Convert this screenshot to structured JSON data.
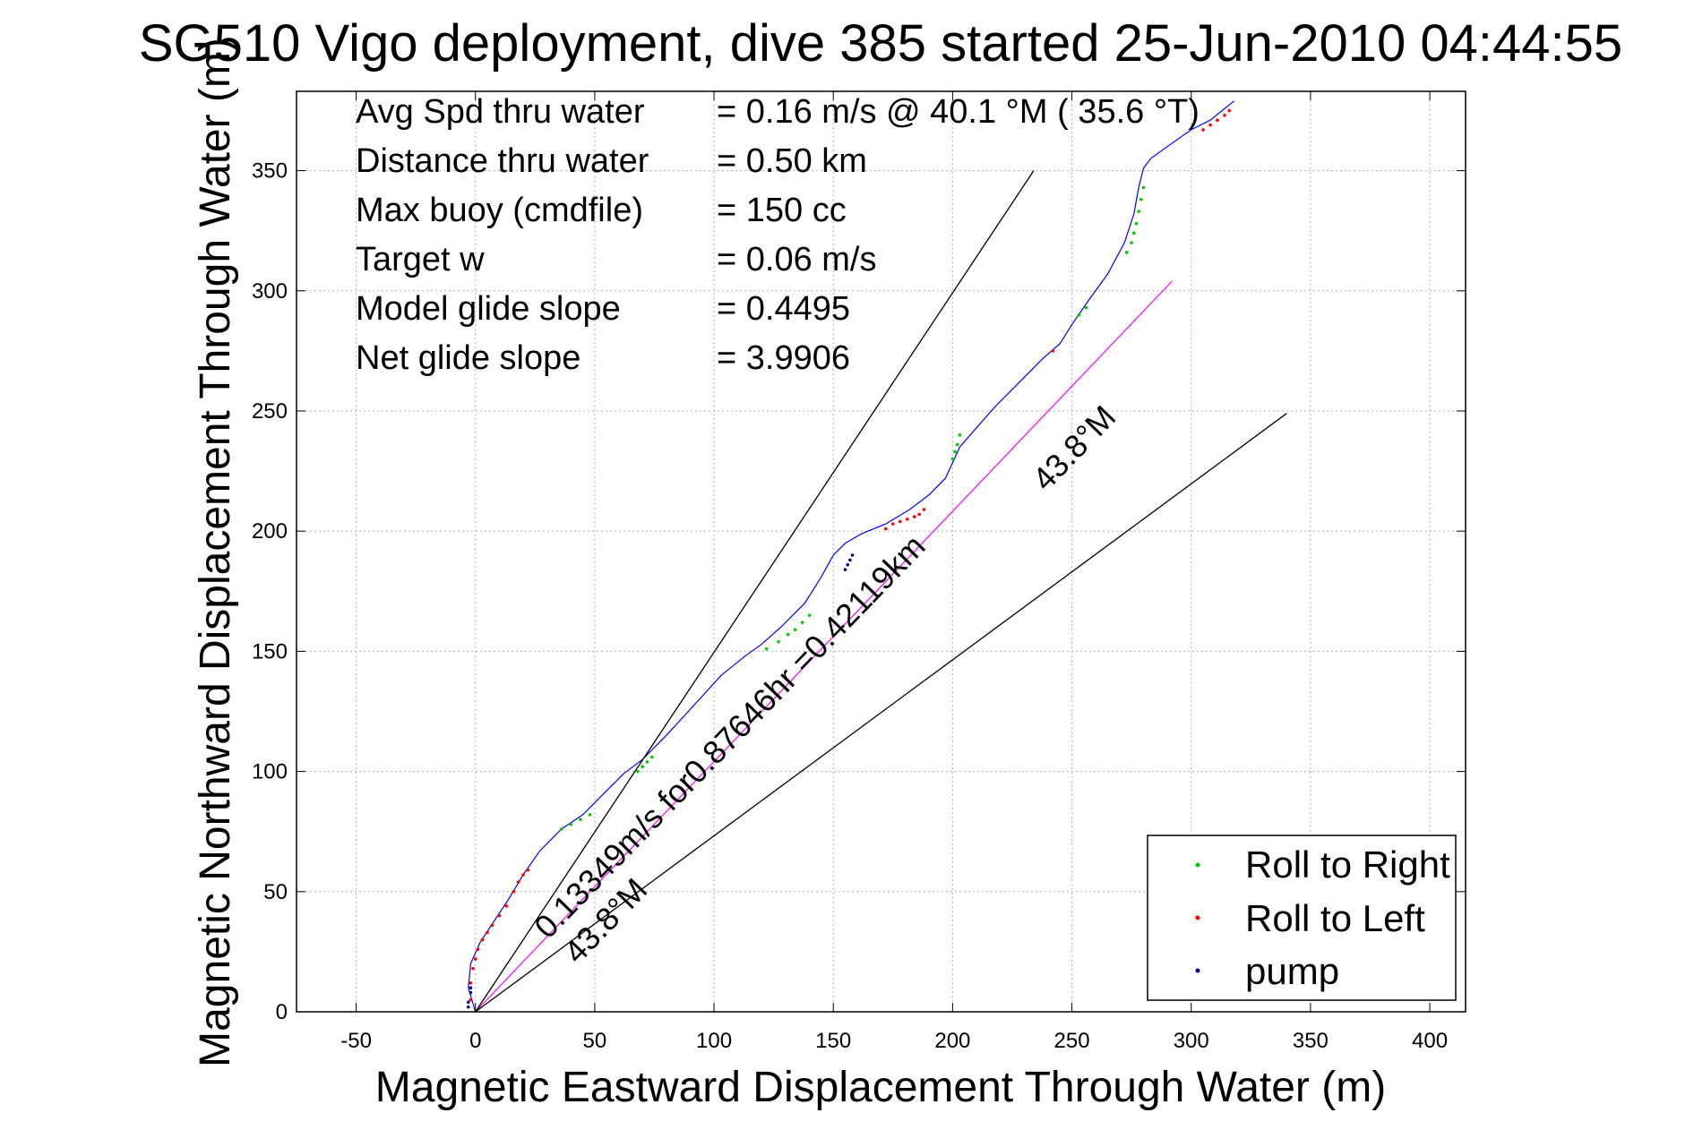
{
  "chart_data": {
    "type": "line",
    "title": "SG510 Vigo deployment, dive 385 started 25-Jun-2010 04:44:55",
    "xlabel": "Magnetic Eastward Displacement Through Water (m)",
    "ylabel": "Magnetic Northward Displacement Through Water (m)",
    "xlim": [
      -75,
      415
    ],
    "ylim": [
      0,
      383
    ],
    "xticks": [
      -50,
      0,
      50,
      100,
      150,
      200,
      250,
      300,
      350,
      400
    ],
    "yticks": [
      0,
      50,
      100,
      150,
      200,
      250,
      300,
      350
    ],
    "grid": true,
    "colors": {
      "track": "#0000ff",
      "net": "#ff00ff",
      "envelope": "#000000",
      "roll_right": "#00cc00",
      "roll_left": "#ff0000",
      "pump": "#000080"
    },
    "stats": [
      {
        "label": "Avg Spd thru water",
        "value": "=  0.16 m/s @  40.1 °M ( 35.6 °T)"
      },
      {
        "label": "Distance thru water",
        "value": "=  0.50 km"
      },
      {
        "label": "Max buoy (cmdfile)",
        "value": "= 150 cc"
      },
      {
        "label": "Target w",
        "value": "= 0.06 m/s"
      },
      {
        "label": "Model glide slope",
        "value": "= 0.4495"
      },
      {
        "label": "Net glide slope",
        "value": "= 3.9906"
      }
    ],
    "annotations": {
      "net_line": "0.13349m/s for0.87646hr =0.42119km",
      "heading_upper": "43.8°M",
      "heading_lower": "43.8°M"
    },
    "legend": {
      "placement": "bottom-right",
      "entries": [
        {
          "label": "Roll to Right",
          "color": "#00cc00"
        },
        {
          "label": "Roll to Left",
          "color": "#ff0000"
        },
        {
          "label": "pump",
          "color": "#000080"
        }
      ]
    },
    "series": [
      {
        "name": "Roll to Right",
        "kind": "track",
        "x": [
          0,
          -3,
          -2,
          2,
          8,
          14,
          20,
          27,
          36,
          45,
          54,
          62,
          70,
          80,
          92,
          103,
          113,
          120,
          128,
          138,
          145,
          150,
          155,
          162,
          172,
          182,
          190,
          197,
          203,
          210,
          218,
          228,
          238,
          245,
          250,
          257,
          265,
          272,
          276,
          278,
          280,
          283,
          290,
          300,
          308,
          318
        ],
        "y": [
          0,
          10,
          20,
          29,
          38,
          47,
          57,
          67,
          76,
          82,
          91,
          99,
          105,
          115,
          128,
          140,
          148,
          153,
          160,
          170,
          181,
          190,
          195,
          199,
          203,
          209,
          215,
          222,
          235,
          243,
          252,
          262,
          272,
          278,
          286,
          296,
          307,
          320,
          332,
          343,
          351,
          355,
          360,
          367,
          371,
          379
        ]
      },
      {
        "name": "Net track",
        "kind": "net",
        "x": [
          0,
          292
        ],
        "y": [
          0,
          304
        ]
      },
      {
        "name": "Envelope upper",
        "kind": "envelope",
        "x": [
          0,
          234
        ],
        "y": [
          0,
          350
        ]
      },
      {
        "name": "Envelope lower",
        "kind": "envelope",
        "x": [
          0,
          340
        ],
        "y": [
          0,
          249
        ]
      }
    ],
    "markers": {
      "roll_right": {
        "x": [
          36,
          40,
          44,
          48,
          68,
          70,
          72,
          74,
          122,
          127,
          131,
          134,
          137,
          140,
          200,
          201,
          202,
          203,
          253,
          256,
          273,
          275,
          276,
          277,
          278,
          279,
          280
        ],
        "y": [
          76,
          78,
          80,
          82,
          100,
          102,
          104,
          106,
          151,
          154,
          157,
          159,
          162,
          165,
          230,
          233,
          236,
          240,
          290,
          293,
          316,
          320,
          324,
          328,
          333,
          338,
          343
        ]
      },
      "roll_left": {
        "x": [
          -2,
          -2,
          -1,
          0,
          1,
          3,
          5,
          7,
          10,
          13,
          16,
          18,
          20,
          22,
          172,
          175,
          178,
          181,
          184,
          186,
          188,
          242,
          305,
          308,
          311,
          314,
          316
        ],
        "y": [
          5,
          12,
          18,
          22,
          26,
          30,
          33,
          36,
          40,
          44,
          50,
          54,
          57,
          59,
          201,
          203,
          204,
          205,
          206,
          207,
          209,
          275,
          367,
          369,
          371,
          373,
          375
        ]
      },
      "pump": {
        "x": [
          -3,
          -3,
          -2,
          -2,
          155,
          156,
          157,
          158
        ],
        "y": [
          2,
          4,
          8,
          10,
          184,
          186,
          188,
          190
        ]
      }
    }
  }
}
